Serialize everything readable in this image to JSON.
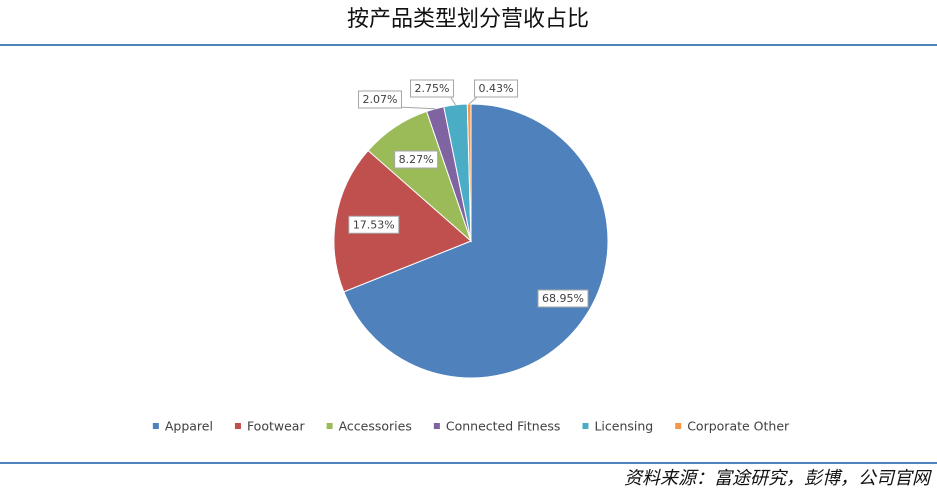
{
  "chart_data": {
    "type": "pie",
    "title": "按产品类型划分营收占比",
    "categories": [
      "Apparel",
      "Footwear",
      "Accessories",
      "Connected Fitness",
      "Licensing",
      "Corporate Other"
    ],
    "values": [
      68.95,
      17.53,
      8.27,
      2.07,
      2.75,
      0.43
    ],
    "value_labels": [
      "68.95%",
      "17.53%",
      "8.27%",
      "2.07%",
      "2.75%",
      "0.43%"
    ],
    "colors": [
      "#4f81bd",
      "#c0504d",
      "#9bbb59",
      "#8064a2",
      "#4bacc6",
      "#f79646"
    ],
    "legend": "bottom",
    "source": "资料来源：富途研究，彭博，公司官网"
  }
}
